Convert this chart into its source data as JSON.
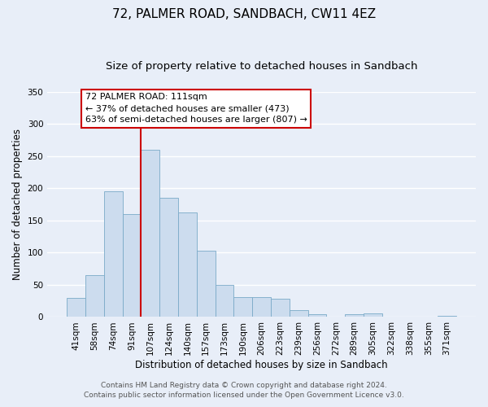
{
  "title": "72, PALMER ROAD, SANDBACH, CW11 4EZ",
  "subtitle": "Size of property relative to detached houses in Sandbach",
  "xlabel": "Distribution of detached houses by size in Sandbach",
  "ylabel": "Number of detached properties",
  "categories": [
    "41sqm",
    "58sqm",
    "74sqm",
    "91sqm",
    "107sqm",
    "124sqm",
    "140sqm",
    "157sqm",
    "173sqm",
    "190sqm",
    "206sqm",
    "223sqm",
    "239sqm",
    "256sqm",
    "272sqm",
    "289sqm",
    "305sqm",
    "322sqm",
    "338sqm",
    "355sqm",
    "371sqm"
  ],
  "values": [
    30,
    65,
    195,
    160,
    260,
    185,
    163,
    103,
    50,
    31,
    31,
    29,
    11,
    4,
    0,
    5,
    6,
    0,
    0,
    0,
    2
  ],
  "bar_color": "#ccdcee",
  "bar_edge_color": "#7aaac8",
  "redline_index": 4,
  "ylim": [
    0,
    350
  ],
  "yticks": [
    0,
    50,
    100,
    150,
    200,
    250,
    300,
    350
  ],
  "annotation_title": "72 PALMER ROAD: 111sqm",
  "annotation_line1": "← 37% of detached houses are smaller (473)",
  "annotation_line2": "63% of semi-detached houses are larger (807) →",
  "annotation_box_color": "#ffffff",
  "annotation_box_edge": "#cc0000",
  "footer1": "Contains HM Land Registry data © Crown copyright and database right 2024.",
  "footer2": "Contains public sector information licensed under the Open Government Licence v3.0.",
  "background_color": "#e8eef8",
  "grid_color": "#ffffff",
  "title_fontsize": 11,
  "subtitle_fontsize": 9.5,
  "axis_label_fontsize": 8.5,
  "tick_fontsize": 7.5,
  "annotation_fontsize": 8,
  "footer_fontsize": 6.5
}
